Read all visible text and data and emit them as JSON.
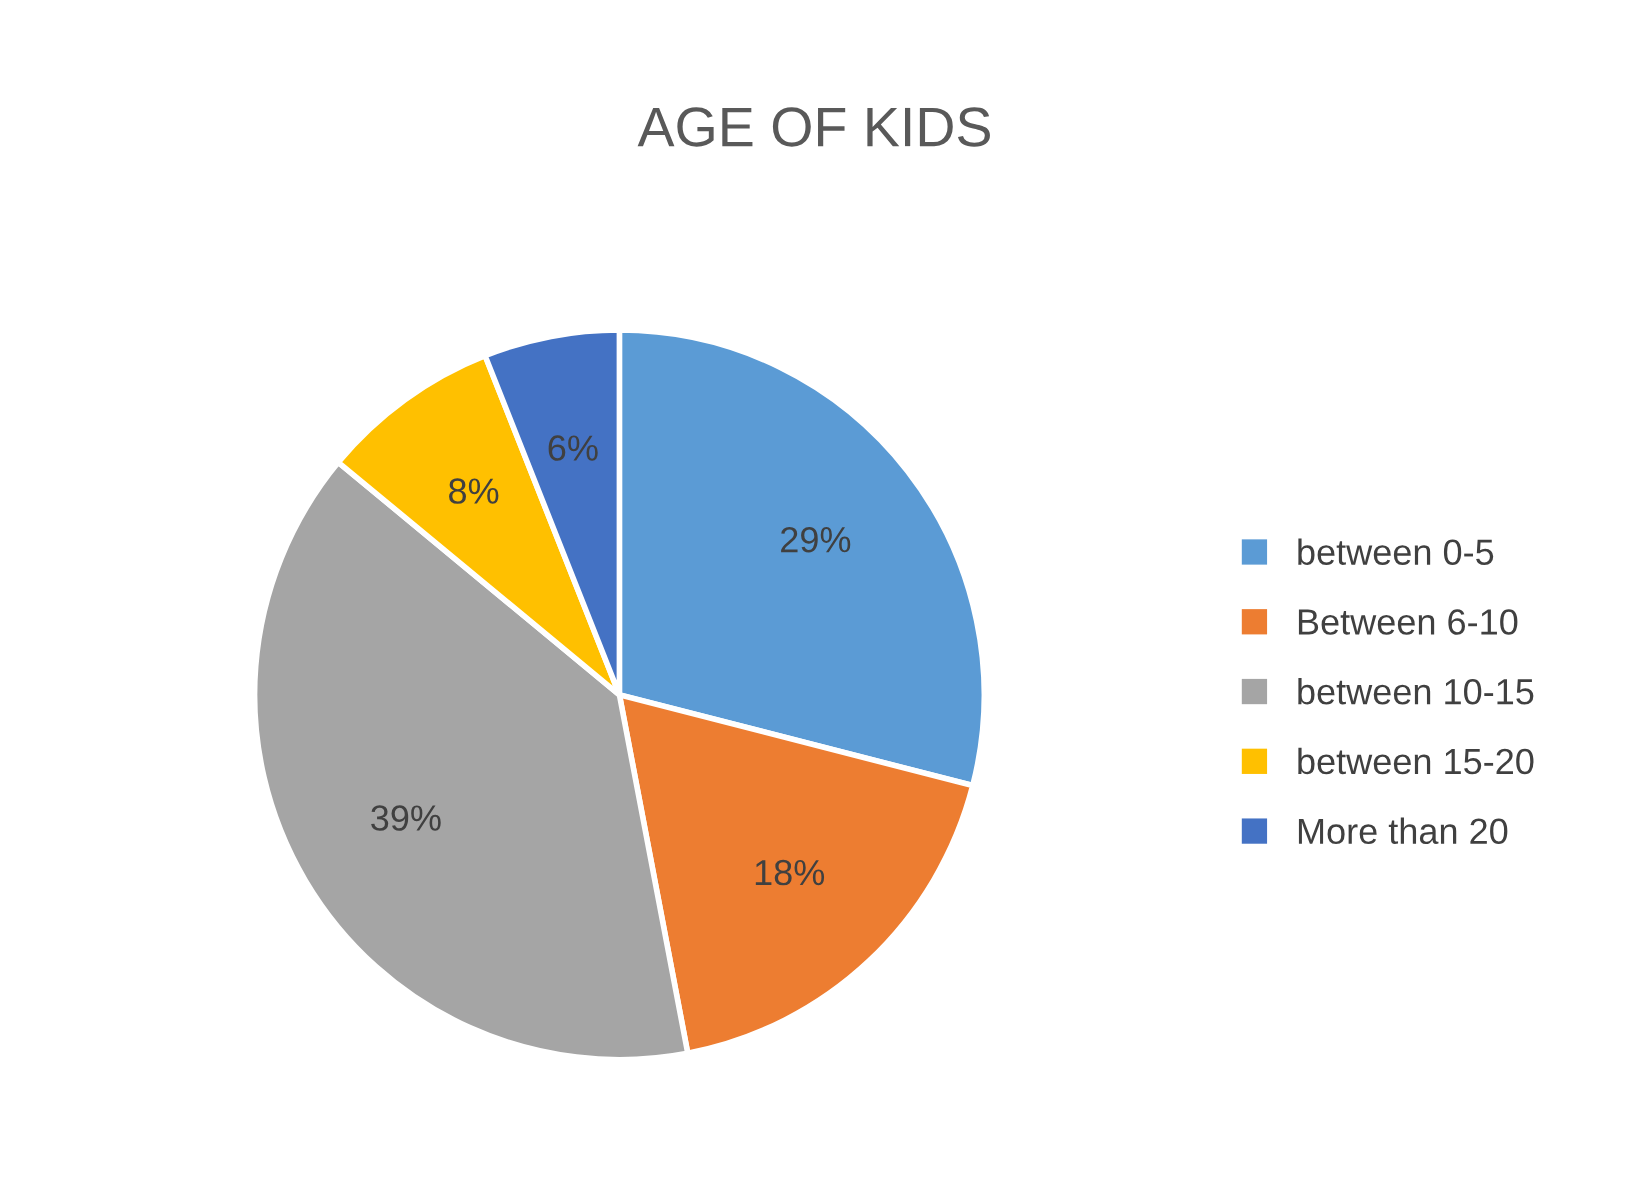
{
  "chart_data": {
    "type": "pie",
    "title": "AGE OF KIDS",
    "categories": [
      "between 0-5",
      "Between 6-10",
      "between 10-15",
      "between 15-20",
      "More than 20"
    ],
    "values": [
      29,
      18,
      39,
      8,
      6
    ],
    "colors": [
      "#5b9bd5",
      "#ed7d31",
      "#a5a5a5",
      "#ffc000",
      "#4472c4"
    ],
    "value_labels": [
      "29%",
      "18%",
      "39%",
      "8%",
      "6%"
    ],
    "legend": "right"
  }
}
